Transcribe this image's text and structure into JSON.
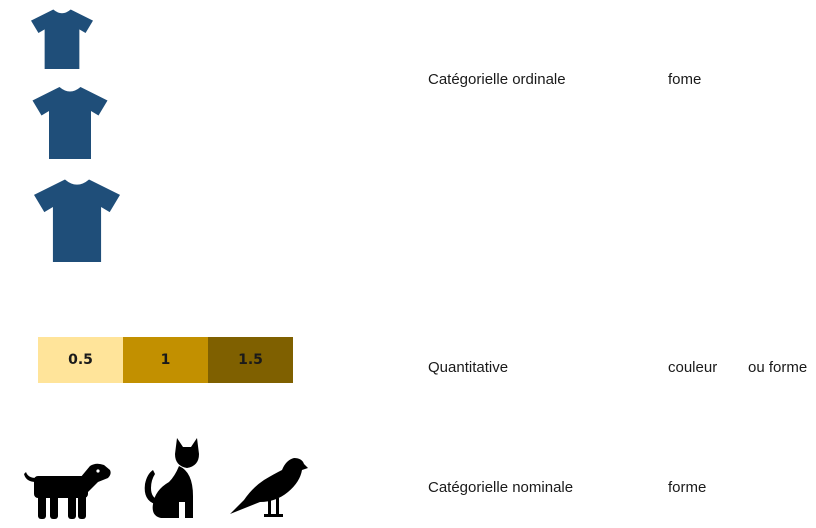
{
  "rows": [
    {
      "icons": [
        "tshirt-small-icon",
        "tshirt-medium-icon",
        "tshirt-large-icon"
      ],
      "category": "Catégorielle ordinale",
      "encoding": "fome",
      "alt_encoding": ""
    },
    {
      "scale": [
        {
          "label": "0.5",
          "color": "#FFE49A"
        },
        {
          "label": "1",
          "color": "#C29000"
        },
        {
          "label": "1.5",
          "color": "#7F6000"
        }
      ],
      "category": "Quantitative",
      "encoding": "couleur",
      "alt_encoding": "ou forme"
    },
    {
      "icons": [
        "dog-icon",
        "cat-icon",
        "bird-icon"
      ],
      "category": "Catégorielle nominale",
      "encoding": "forme",
      "alt_encoding": ""
    }
  ],
  "colors": {
    "shirt": "#1F4E79",
    "animal": "#000000"
  }
}
